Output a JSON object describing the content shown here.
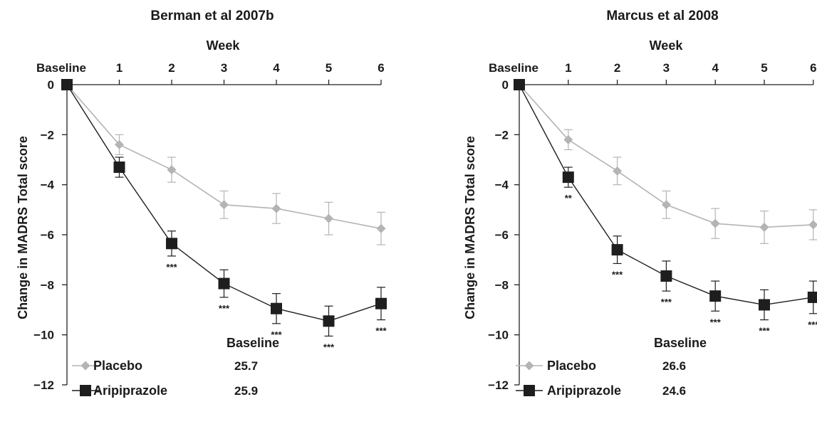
{
  "chart_data": [
    {
      "type": "line",
      "title": "Berman et al 2007b",
      "xlabel": "Week",
      "ylabel": "Change in MADRS Total score",
      "x_categories": [
        "Baseline",
        "1",
        "2",
        "3",
        "4",
        "5",
        "6"
      ],
      "ylim": [
        -12,
        0
      ],
      "yticks": [
        0,
        -2,
        -4,
        -6,
        -8,
        -10,
        -12
      ],
      "ytick_labels": [
        "0",
        "−2",
        "−4",
        "−6",
        "−8",
        "−10",
        "−12"
      ],
      "grid": false,
      "series": [
        {
          "name": "Placebo",
          "marker": "diamond",
          "color": "#b4b4b4",
          "values": [
            0,
            -2.4,
            -3.4,
            -4.8,
            -4.95,
            -5.35,
            -5.75
          ],
          "error": [
            0,
            0.4,
            0.5,
            0.55,
            0.6,
            0.65,
            0.65
          ],
          "annotations": [
            "",
            "",
            "",
            "",
            "",
            "",
            ""
          ]
        },
        {
          "name": "Aripiprazole",
          "marker": "square",
          "color": "#1e1e1e",
          "values": [
            0,
            -3.3,
            -6.35,
            -7.95,
            -8.95,
            -9.45,
            -8.75
          ],
          "error": [
            0,
            0.4,
            0.5,
            0.55,
            0.6,
            0.6,
            0.65
          ],
          "annotations": [
            "",
            "",
            "***",
            "***",
            "***",
            "***",
            "***"
          ]
        }
      ],
      "legend": {
        "placement": "bottom-left",
        "header": "Baseline",
        "entries": [
          {
            "name": "Placebo",
            "baseline": "25.7"
          },
          {
            "name": "Aripiprazole",
            "baseline": "25.9"
          }
        ]
      }
    },
    {
      "type": "line",
      "title": "Marcus et al 2008",
      "xlabel": "Week",
      "ylabel": "Change in MADRS Total score",
      "x_categories": [
        "Baseline",
        "1",
        "2",
        "3",
        "4",
        "5",
        "6"
      ],
      "ylim": [
        -12,
        0
      ],
      "yticks": [
        0,
        -2,
        -4,
        -6,
        -8,
        -10,
        -12
      ],
      "ytick_labels": [
        "0",
        "−2",
        "−4",
        "−6",
        "−8",
        "−10",
        "−12"
      ],
      "grid": false,
      "series": [
        {
          "name": "Placebo",
          "marker": "diamond",
          "color": "#b4b4b4",
          "values": [
            0,
            -2.2,
            -3.45,
            -4.8,
            -5.55,
            -5.7,
            -5.6
          ],
          "error": [
            0,
            0.4,
            0.55,
            0.55,
            0.6,
            0.65,
            0.6
          ],
          "annotations": [
            "",
            "",
            "",
            "",
            "",
            "",
            ""
          ]
        },
        {
          "name": "Aripiprazole",
          "marker": "square",
          "color": "#1e1e1e",
          "values": [
            0,
            -3.7,
            -6.6,
            -7.65,
            -8.45,
            -8.8,
            -8.5
          ],
          "error": [
            0,
            0.4,
            0.55,
            0.6,
            0.6,
            0.6,
            0.65
          ],
          "annotations": [
            "",
            "**",
            "***",
            "***",
            "***",
            "***",
            "***"
          ]
        }
      ],
      "legend": {
        "placement": "bottom-left",
        "header": "Baseline",
        "entries": [
          {
            "name": "Placebo",
            "baseline": "26.6"
          },
          {
            "name": "Aripiprazole",
            "baseline": "24.6"
          }
        ]
      }
    }
  ]
}
